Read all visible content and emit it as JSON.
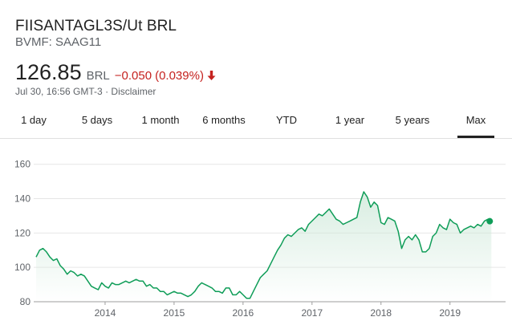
{
  "header": {
    "title": "FIISANTAGL3S/Ut BRL",
    "subtitle": "BVMF: SAAG11"
  },
  "quote": {
    "price": "126.85",
    "currency": "BRL",
    "change": "−0.050",
    "change_pct": "(0.039%)",
    "timestamp": "Jul 30, 16:56 GMT-3",
    "separator": "·",
    "disclaimer": "Disclaimer"
  },
  "tabs": [
    {
      "label": "1 day",
      "active": false
    },
    {
      "label": "5 days",
      "active": false
    },
    {
      "label": "1 month",
      "active": false
    },
    {
      "label": "6 months",
      "active": false
    },
    {
      "label": "YTD",
      "active": false
    },
    {
      "label": "1 year",
      "active": false
    },
    {
      "label": "5 years",
      "active": false
    },
    {
      "label": "Max",
      "active": true
    }
  ],
  "colors": {
    "line": "#0f9d58",
    "fill_top": "#cfe9da",
    "grid": "#e6e6e6",
    "baseline": "#9e9e9e",
    "negative": "#c5221f"
  },
  "chart_data": {
    "type": "area",
    "title": "",
    "xlabel": "",
    "ylabel": "",
    "ylim": [
      80,
      165
    ],
    "xlim": [
      2013.0,
      2019.62
    ],
    "yticks": [
      80,
      100,
      120,
      140,
      160
    ],
    "xticks": [
      {
        "value": 2014,
        "label": "2014"
      },
      {
        "value": 2015,
        "label": "2015"
      },
      {
        "value": 2016,
        "label": "2016"
      },
      {
        "value": 2017,
        "label": "2017"
      },
      {
        "value": 2018,
        "label": "2018"
      },
      {
        "value": 2019,
        "label": "2019"
      }
    ],
    "grid": true,
    "series": [
      {
        "x": [
          2013.0,
          2013.05,
          2013.1,
          2013.15,
          2013.2,
          2013.25,
          2013.3,
          2013.35,
          2013.4,
          2013.45,
          2013.5,
          2013.55,
          2013.6,
          2013.65,
          2013.7,
          2013.75,
          2013.8,
          2013.85,
          2013.9,
          2013.95,
          2014.0,
          2014.05,
          2014.1,
          2014.15,
          2014.2,
          2014.25,
          2014.3,
          2014.35,
          2014.4,
          2014.45,
          2014.5,
          2014.55,
          2014.6,
          2014.65,
          2014.7,
          2014.75,
          2014.8,
          2014.85,
          2014.9,
          2014.95,
          2015.0,
          2015.05,
          2015.1,
          2015.15,
          2015.2,
          2015.25,
          2015.3,
          2015.35,
          2015.4,
          2015.45,
          2015.5,
          2015.55,
          2015.6,
          2015.65,
          2015.7,
          2015.75,
          2015.8,
          2015.85,
          2015.9,
          2015.95,
          2016.0,
          2016.05,
          2016.1,
          2016.15,
          2016.2,
          2016.25,
          2016.3,
          2016.35,
          2016.4,
          2016.45,
          2016.5,
          2016.55,
          2016.6,
          2016.65,
          2016.7,
          2016.75,
          2016.8,
          2016.85,
          2016.9,
          2016.95,
          2017.0,
          2017.05,
          2017.1,
          2017.15,
          2017.2,
          2017.25,
          2017.3,
          2017.35,
          2017.4,
          2017.45,
          2017.5,
          2017.55,
          2017.6,
          2017.65,
          2017.7,
          2017.75,
          2017.8,
          2017.85,
          2017.9,
          2017.95,
          2018.0,
          2018.05,
          2018.1,
          2018.15,
          2018.2,
          2018.25,
          2018.3,
          2018.35,
          2018.4,
          2018.45,
          2018.5,
          2018.55,
          2018.6,
          2018.65,
          2018.7,
          2018.75,
          2018.8,
          2018.85,
          2018.9,
          2018.95,
          2019.0,
          2019.05,
          2019.1,
          2019.15,
          2019.2,
          2019.25,
          2019.3,
          2019.35,
          2019.4,
          2019.45,
          2019.5,
          2019.55,
          2019.6
        ],
        "values": [
          106,
          110,
          111,
          109,
          106,
          104,
          105,
          101,
          99,
          96,
          98,
          97,
          95,
          96,
          95,
          92,
          89,
          88,
          87,
          91,
          89,
          88,
          91,
          90,
          90,
          91,
          92,
          91,
          92,
          93,
          92,
          92,
          89,
          90,
          88,
          88,
          86,
          86,
          84,
          85,
          86,
          85,
          85,
          84,
          83,
          84,
          86,
          89,
          91,
          90,
          89,
          88,
          86,
          86,
          85,
          88,
          88,
          84,
          84,
          86,
          84,
          82,
          82,
          86,
          90,
          94,
          96,
          98,
          102,
          106,
          110,
          113,
          117,
          119,
          118,
          120,
          122,
          123,
          121,
          125,
          127,
          129,
          131,
          130,
          132,
          134,
          131,
          128,
          127,
          125,
          126,
          127,
          128,
          129,
          138,
          144,
          141,
          135,
          138,
          136,
          126,
          125,
          129,
          128,
          127,
          121,
          111,
          116,
          118,
          116,
          119,
          116,
          109,
          109,
          111,
          118,
          120,
          125,
          123,
          122,
          128,
          126,
          125,
          120,
          122,
          123,
          124,
          123,
          125,
          124,
          127,
          128,
          126.85
        ]
      }
    ],
    "last_point_marker": true
  }
}
